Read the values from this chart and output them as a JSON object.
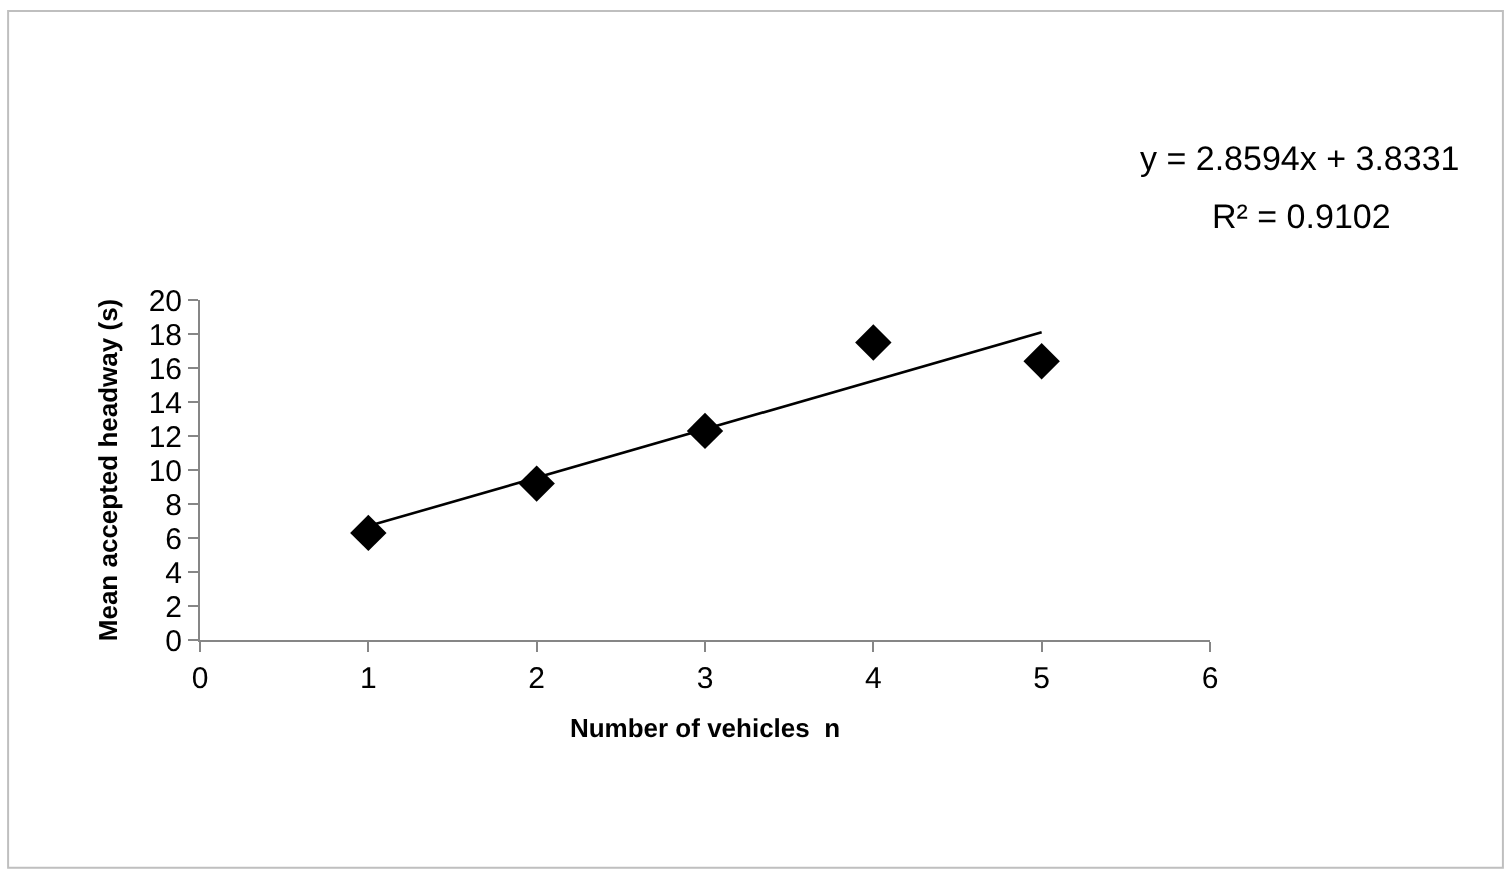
{
  "chart_data": {
    "type": "scatter",
    "xlabel": "Number of vehicles  n",
    "ylabel": "Mean accepted headway (s)",
    "x": [
      1,
      2,
      3,
      4,
      5
    ],
    "series": [
      {
        "color": "#000000",
        "values": [
          6.3,
          9.2,
          12.3,
          17.5,
          16.4
        ],
        "marker": "diamond"
      },
      {
        "type": "line",
        "color": "#000000",
        "x": [
          1,
          5
        ],
        "values": [
          6.7,
          18.1
        ],
        "marker": "none"
      }
    ],
    "annotations": [
      "y = 2.8594x + 3.8331",
      "R² = 0.9102"
    ],
    "xlim": [
      0,
      6
    ],
    "xticks": [
      0,
      1,
      2,
      3,
      4,
      5,
      6
    ],
    "ylim": [
      0,
      20
    ],
    "yticks": [
      0,
      2,
      4,
      6,
      8,
      10,
      12,
      14,
      16,
      18,
      20
    ]
  }
}
